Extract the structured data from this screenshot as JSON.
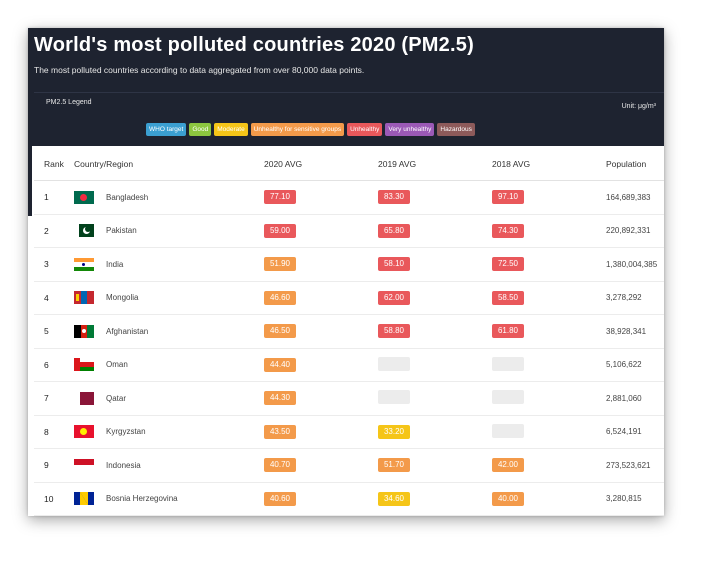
{
  "header": {
    "title": "World's most polluted countries 2020 (PM2.5)",
    "subtitle": "The most polluted countries according to data aggregated from over 80,000 data points."
  },
  "legend": {
    "label": "PM2.5 Legend",
    "unit": "Unit: μg/m³",
    "items": [
      {
        "label": "WHO target",
        "color": "#3b9fd1"
      },
      {
        "label": "Good",
        "color": "#8cc63f"
      },
      {
        "label": "Moderate",
        "color": "#f5c518"
      },
      {
        "label": "Unhealthy for sensitive groups",
        "color": "#f39a4a"
      },
      {
        "label": "Unhealthy",
        "color": "#e9585b"
      },
      {
        "label": "Very unhealthy",
        "color": "#9b59b6"
      },
      {
        "label": "Hazardous",
        "color": "#8d5a5a"
      }
    ]
  },
  "table": {
    "headers": {
      "rank": "Rank",
      "country": "Country/Region",
      "y2020": "2020 AVG",
      "y2019": "2019 AVG",
      "y2018": "2018 AVG",
      "population": "Population"
    },
    "rows": [
      {
        "rank": "1",
        "country": "Bangladesh",
        "flag": "bangladesh-flag",
        "v2020": "77.10",
        "c2020": "unhealthy",
        "v2019": "83.30",
        "c2019": "unhealthy",
        "v2018": "97.10",
        "c2018": "unhealthy",
        "population": "164,689,383"
      },
      {
        "rank": "2",
        "country": "Pakistan",
        "flag": "pakistan-flag",
        "v2020": "59.00",
        "c2020": "unhealthy",
        "v2019": "65.80",
        "c2019": "unhealthy",
        "v2018": "74.30",
        "c2018": "unhealthy",
        "population": "220,892,331"
      },
      {
        "rank": "3",
        "country": "India",
        "flag": "india-flag",
        "v2020": "51.90",
        "c2020": "sensitive",
        "v2019": "58.10",
        "c2019": "unhealthy",
        "v2018": "72.50",
        "c2018": "unhealthy",
        "population": "1,380,004,385"
      },
      {
        "rank": "4",
        "country": "Mongolia",
        "flag": "mongolia-flag",
        "v2020": "46.60",
        "c2020": "sensitive",
        "v2019": "62.00",
        "c2019": "unhealthy",
        "v2018": "58.50",
        "c2018": "unhealthy",
        "population": "3,278,292"
      },
      {
        "rank": "5",
        "country": "Afghanistan",
        "flag": "afghanistan-flag",
        "v2020": "46.50",
        "c2020": "sensitive",
        "v2019": "58.80",
        "c2019": "unhealthy",
        "v2018": "61.80",
        "c2018": "unhealthy",
        "population": "38,928,341"
      },
      {
        "rank": "6",
        "country": "Oman",
        "flag": "oman-flag",
        "v2020": "44.40",
        "c2020": "sensitive",
        "v2019": "",
        "c2019": "empty",
        "v2018": "",
        "c2018": "empty",
        "population": "5,106,622"
      },
      {
        "rank": "7",
        "country": "Qatar",
        "flag": "qatar-flag",
        "v2020": "44.30",
        "c2020": "sensitive",
        "v2019": "",
        "c2019": "empty",
        "v2018": "",
        "c2018": "empty",
        "population": "2,881,060"
      },
      {
        "rank": "8",
        "country": "Kyrgyzstan",
        "flag": "kyrgyzstan-flag",
        "v2020": "43.50",
        "c2020": "sensitive",
        "v2019": "33.20",
        "c2019": "moderate",
        "v2018": "",
        "c2018": "empty",
        "population": "6,524,191"
      },
      {
        "rank": "9",
        "country": "Indonesia",
        "flag": "indonesia-flag",
        "v2020": "40.70",
        "c2020": "sensitive",
        "v2019": "51.70",
        "c2019": "sensitive",
        "v2018": "42.00",
        "c2018": "sensitive",
        "population": "273,523,621"
      },
      {
        "rank": "10",
        "country": "Bosnia Herzegovina",
        "flag": "bosnia-flag",
        "v2020": "40.60",
        "c2020": "sensitive",
        "v2019": "34.60",
        "c2019": "moderate",
        "v2018": "40.00",
        "c2018": "sensitive",
        "population": "3,280,815"
      }
    ]
  },
  "colors": {
    "unhealthy": "#e9585b",
    "sensitive": "#f39a4a",
    "moderate": "#f5c518",
    "empty": "#ececec"
  }
}
